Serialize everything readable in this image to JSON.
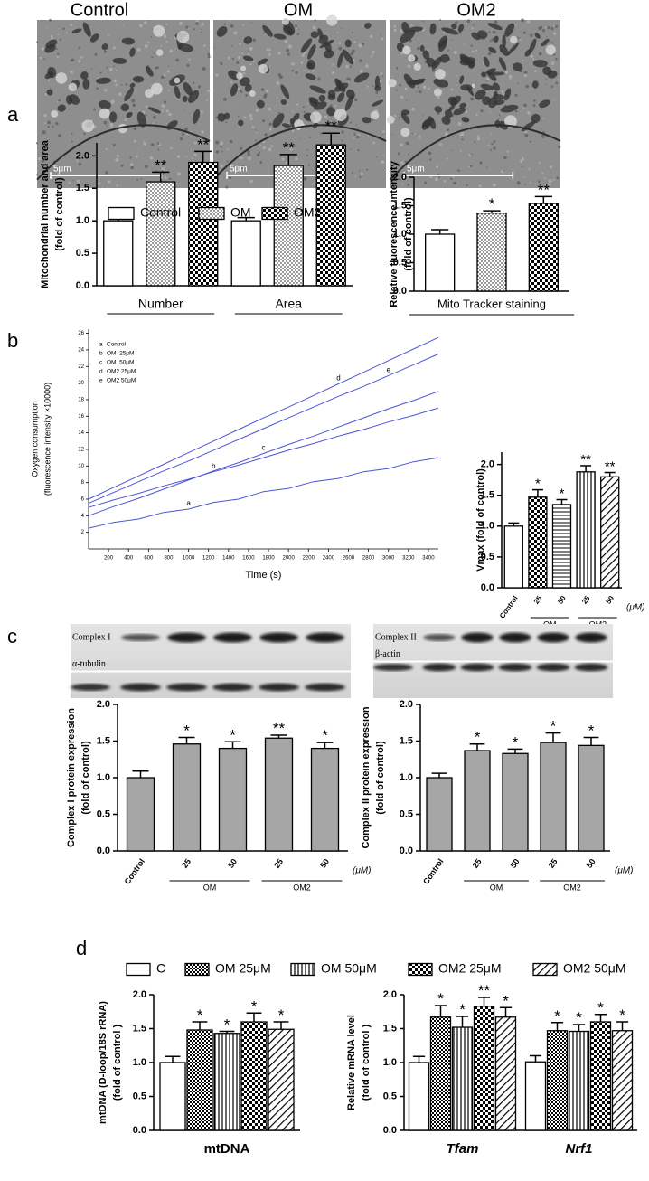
{
  "panel_labels": [
    "a",
    "b",
    "c",
    "d"
  ],
  "micrographs": {
    "titles": [
      "Control",
      "OM",
      "OM2"
    ],
    "scale_label": "5μm"
  },
  "chart_data": [
    {
      "type": "bar",
      "categories": [
        "Number",
        "Area"
      ],
      "series": [
        {
          "name": "Control",
          "pattern": "white",
          "values": [
            1.0,
            1.0
          ],
          "errors": [
            0.04,
            0.05
          ]
        },
        {
          "name": "OM",
          "pattern": "dots",
          "values": [
            1.6,
            1.85
          ],
          "errors": [
            0.15,
            0.17
          ],
          "sig": [
            "**",
            "**"
          ]
        },
        {
          "name": "OM2",
          "pattern": "checker",
          "values": [
            1.9,
            2.17
          ],
          "errors": [
            0.17,
            0.18
          ],
          "sig": [
            "**",
            "**"
          ]
        }
      ],
      "ylabel": [
        "Mitochondrial number and area",
        "(fold of control)"
      ],
      "ylim": [
        0,
        2.2
      ],
      "yticks": [
        {
          "value": 0,
          "label": "0.0"
        },
        0.5,
        {
          "value": 1,
          "label": "1.0"
        },
        1.5,
        {
          "value": 2,
          "label": "2.0"
        }
      ],
      "legend": "top"
    },
    {
      "type": "bar",
      "categories": [
        null,
        null,
        null
      ],
      "values": [
        1.0,
        1.37,
        1.54
      ],
      "errors": [
        0.08,
        0.04,
        0.12
      ],
      "sig": [
        null,
        "*",
        "**"
      ],
      "patterns": [
        "white",
        "dots",
        "checker"
      ],
      "category_groups": [
        {
          "label": "Mito Tracker staining",
          "span": [
            0,
            2
          ]
        }
      ],
      "ylabel": [
        "Relative fluorescence intensity",
        "(fold of control)"
      ],
      "ylim": [
        0,
        2
      ],
      "yticks": [
        {
          "value": 0,
          "label": "0.0"
        },
        0.5,
        {
          "value": 1,
          "label": "1.0"
        },
        1.5,
        {
          "value": 2,
          "label": "2.0"
        }
      ]
    },
    {
      "type": "line",
      "x": [
        0,
        250,
        500,
        750,
        1000,
        1250,
        1500,
        1750,
        2000,
        2250,
        2500,
        2750,
        3000,
        3250,
        3500
      ],
      "series": [
        {
          "letter": "a",
          "name": "Control",
          "color": "#4b55d8",
          "values": [
            2.5,
            3.2,
            3.6,
            4.4,
            4.8,
            5.6,
            6.0,
            6.9,
            7.3,
            8.1,
            8.5,
            9.3,
            9.7,
            10.5,
            11.0
          ]
        },
        {
          "letter": "b",
          "name": "OM  25μM",
          "color": "#4b55d8",
          "values": [
            5.0,
            5.9,
            6.7,
            7.6,
            8.4,
            9.3,
            10.1,
            11.0,
            11.9,
            12.7,
            13.6,
            14.4,
            15.3,
            16.1,
            17.0
          ]
        },
        {
          "letter": "c",
          "name": "OM  50μM",
          "color": "#4b55d8",
          "values": [
            4.0,
            5.1,
            6.1,
            7.2,
            8.3,
            9.4,
            10.4,
            11.5,
            12.6,
            13.6,
            14.7,
            15.8,
            16.9,
            17.9,
            19.0
          ]
        },
        {
          "letter": "d",
          "name": "OM2 25μM",
          "color": "#4b55d8",
          "values": [
            6.0,
            7.4,
            8.8,
            10.2,
            11.6,
            13.0,
            14.4,
            15.8,
            17.1,
            18.5,
            19.9,
            21.3,
            22.7,
            24.1,
            25.5
          ]
        },
        {
          "letter": "e",
          "name": "OM2 50μM",
          "color": "#4b55d8",
          "values": [
            5.5,
            6.8,
            8.1,
            9.4,
            10.6,
            11.9,
            13.2,
            14.5,
            15.8,
            17.1,
            18.4,
            19.6,
            20.9,
            22.2,
            23.5
          ]
        }
      ],
      "xlabel": "Time (s)",
      "ylabel": [
        "Oxygen consumption",
        "(fluorescence intensity ×10000)"
      ],
      "xlim": [
        0,
        3500
      ],
      "xticks": [
        200,
        400,
        600,
        800,
        1000,
        1200,
        1400,
        1600,
        1800,
        2000,
        2200,
        2400,
        2600,
        2800,
        3000,
        3200,
        3400
      ],
      "ylim": [
        0,
        26.5
      ],
      "yticks": [
        2,
        4,
        6,
        8,
        10,
        12,
        14,
        16,
        18,
        20,
        22,
        24,
        26
      ],
      "legend": "upper left"
    },
    {
      "type": "bar",
      "categories": [
        "Control",
        "25",
        "50",
        "25",
        "50"
      ],
      "values": [
        1.0,
        1.47,
        1.35,
        1.88,
        1.8
      ],
      "errors": [
        0.05,
        0.12,
        0.08,
        0.1,
        0.07
      ],
      "sig": [
        null,
        "*",
        "*",
        "**",
        "**"
      ],
      "patterns": [
        "white",
        "checker",
        "hlines",
        "vlines",
        "diag"
      ],
      "category_groups": [
        {
          "label": "OM",
          "span": [
            1,
            2
          ]
        },
        {
          "label": "OM2",
          "span": [
            3,
            4
          ]
        }
      ],
      "unit_label": "(μM)",
      "ylabel": [
        "Vmax (fold of control)"
      ],
      "ylim": [
        0,
        2.2
      ],
      "yticks": [
        {
          "value": 0,
          "label": "0.0"
        },
        0.5,
        {
          "value": 1,
          "label": "1.0"
        },
        1.5,
        {
          "value": 2,
          "label": "2.0"
        }
      ]
    },
    {
      "type": "bar",
      "categories": [
        "Control",
        "25",
        "50",
        "25",
        "50"
      ],
      "values": [
        1.0,
        1.46,
        1.4,
        1.54,
        1.4
      ],
      "errors": [
        0.09,
        0.09,
        0.09,
        0.04,
        0.08
      ],
      "sig": [
        null,
        "*",
        "*",
        "**",
        "*"
      ],
      "color": "#a6a6a6",
      "category_groups": [
        {
          "label": "OM",
          "span": [
            1,
            2
          ]
        },
        {
          "label": "OM2",
          "span": [
            3,
            4
          ]
        }
      ],
      "unit_label": "(μM)",
      "blot_labels": [
        "Complex I",
        "α-tubulin"
      ],
      "ylabel": [
        "Complex I protein expression",
        "(fold of control)"
      ],
      "ylim": [
        0,
        2
      ],
      "yticks": [
        {
          "value": 0,
          "label": "0.0"
        },
        0.5,
        {
          "value": 1,
          "label": "1.0"
        },
        1.5,
        {
          "value": 2,
          "label": "2.0"
        }
      ]
    },
    {
      "type": "bar",
      "categories": [
        "Control",
        "25",
        "50",
        "25",
        "50"
      ],
      "values": [
        1.0,
        1.37,
        1.33,
        1.48,
        1.44
      ],
      "errors": [
        0.06,
        0.09,
        0.06,
        0.13,
        0.11
      ],
      "sig": [
        null,
        "*",
        "*",
        "*",
        "*"
      ],
      "color": "#a6a6a6",
      "category_groups": [
        {
          "label": "OM",
          "span": [
            1,
            2
          ]
        },
        {
          "label": "OM2",
          "span": [
            3,
            4
          ]
        }
      ],
      "unit_label": "(μM)",
      "blot_labels": [
        "Complex II",
        "β-actin"
      ],
      "ylabel": [
        "Complex II protein expression",
        "(fold of control)"
      ],
      "ylim": [
        0,
        2
      ],
      "yticks": [
        {
          "value": 0,
          "label": "0.0"
        },
        0.5,
        {
          "value": 1,
          "label": "1.0"
        },
        1.5,
        {
          "value": 2,
          "label": "2.0"
        }
      ]
    },
    {
      "type": "bar",
      "categories": [
        "mtDNA"
      ],
      "series": [
        {
          "name": "C",
          "pattern": "white",
          "values": [
            1.0
          ],
          "errors": [
            0.09
          ]
        },
        {
          "name": "OM 25μM",
          "pattern": "checker-fine",
          "values": [
            1.48
          ],
          "errors": [
            0.12
          ],
          "sig": [
            "*"
          ]
        },
        {
          "name": "OM 50μM",
          "pattern": "vlines",
          "values": [
            1.43
          ],
          "errors": [
            0.03
          ],
          "sig": [
            "*"
          ]
        },
        {
          "name": "OM2 25μM",
          "pattern": "checker",
          "values": [
            1.6
          ],
          "errors": [
            0.13
          ],
          "sig": [
            "*"
          ]
        },
        {
          "name": "OM2 50μM",
          "pattern": "diag",
          "values": [
            1.49
          ],
          "errors": [
            0.11
          ],
          "sig": [
            "*"
          ]
        }
      ],
      "ylabel": [
        "mtDNA (D-loop/18S rRNA)",
        "(fold of control )"
      ],
      "ylim": [
        0,
        2
      ],
      "yticks": [
        {
          "value": 0,
          "label": "0.0"
        },
        0.5,
        {
          "value": 1,
          "label": "1.0"
        },
        1.5,
        {
          "value": 2,
          "label": "2.0"
        }
      ],
      "legend": "top"
    },
    {
      "type": "bar",
      "categories": [
        "Tfam",
        "Nrf1"
      ],
      "category_style": "italic",
      "series": [
        {
          "name": "C",
          "pattern": "white",
          "values": [
            1.0,
            1.01
          ],
          "errors": [
            0.09,
            0.09
          ]
        },
        {
          "name": "OM 25μM",
          "pattern": "checker-fine",
          "values": [
            1.67,
            1.47
          ],
          "errors": [
            0.17,
            0.12
          ],
          "sig": [
            "*",
            "*"
          ]
        },
        {
          "name": "OM 50μM",
          "pattern": "vlines",
          "values": [
            1.52,
            1.46
          ],
          "errors": [
            0.16,
            0.1
          ],
          "sig": [
            "*",
            "*"
          ]
        },
        {
          "name": "OM2 25μM",
          "pattern": "checker",
          "values": [
            1.83,
            1.6
          ],
          "errors": [
            0.13,
            0.11
          ],
          "sig": [
            "**",
            "*"
          ]
        },
        {
          "name": "OM2 50μM",
          "pattern": "diag",
          "values": [
            1.67,
            1.47
          ],
          "errors": [
            0.14,
            0.13
          ],
          "sig": [
            "*",
            "*"
          ]
        }
      ],
      "ylabel": [
        "Relative mRNA level",
        "(fold of control )"
      ],
      "ylim": [
        0,
        2
      ],
      "yticks": [
        {
          "value": 0,
          "label": "0.0"
        },
        0.5,
        {
          "value": 1,
          "label": "1.0"
        },
        1.5,
        {
          "value": 2,
          "label": "2.0"
        }
      ]
    }
  ]
}
